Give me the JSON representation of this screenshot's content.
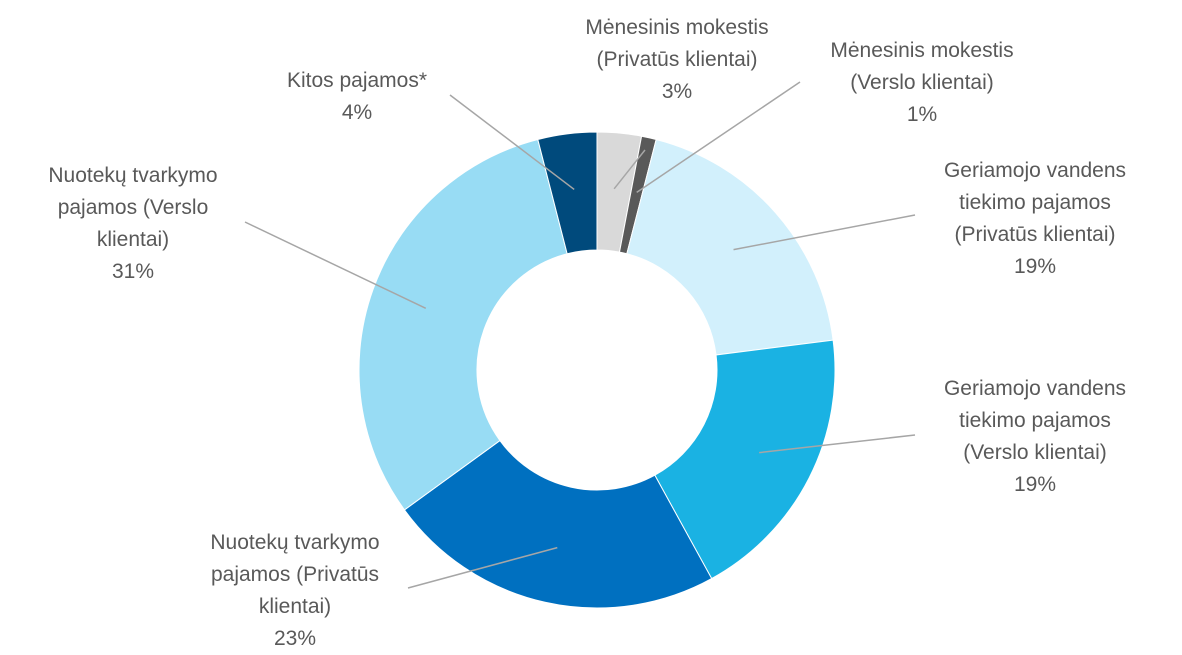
{
  "chart_data": {
    "type": "donut",
    "categories": [
      "Mėnesinis mokestis (Privatūs klientai)",
      "Mėnesinis mokestis (Verslo klientai)",
      "Geriamojo vandens tiekimo pajamos (Privatūs klientai)",
      "Geriamojo vandens tiekimo pajamos (Verslo klientai)",
      "Nuotekų tvarkymo pajamos (Privatūs klientai)",
      "Nuotekų tvarkymo pajamos (Verslo klientai)",
      "Kitos pajamos*"
    ],
    "values": [
      3,
      1,
      19,
      19,
      23,
      31,
      4
    ],
    "value_labels": [
      "3%",
      "1%",
      "19%",
      "19%",
      "23%",
      "31%",
      "4%"
    ],
    "colors": [
      "#d9d9d9",
      "#595959",
      "#d2f0fc",
      "#1ab2e3",
      "#0070c0",
      "#98dcf4",
      "#004a7c"
    ]
  }
}
